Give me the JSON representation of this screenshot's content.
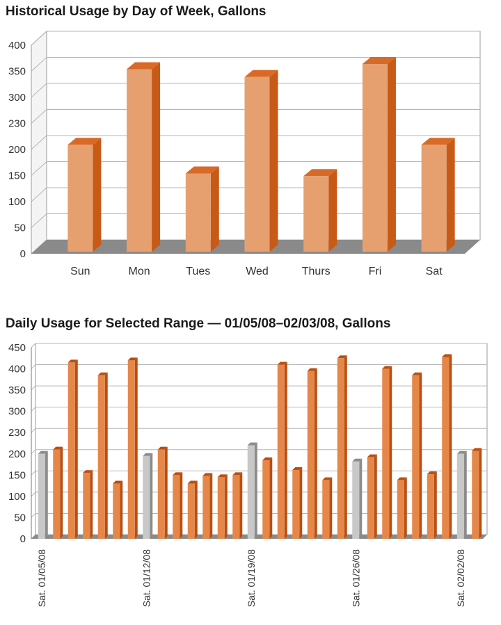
{
  "chart_data": [
    {
      "type": "bar",
      "title": "Historical Usage by Day of Week, Gallons",
      "categories": [
        "Sun",
        "Mon",
        "Tues",
        "Wed",
        "Thurs",
        "Fri",
        "Sat"
      ],
      "values": [
        205,
        350,
        150,
        335,
        145,
        360,
        205
      ],
      "yticks": [
        "0",
        "50",
        "100",
        "150",
        "200",
        "230",
        "300",
        "350",
        "400"
      ],
      "ylim": [
        0,
        400
      ],
      "grid": true,
      "bar_color": "#e6a070",
      "bar_side_color": "#c85a18",
      "floor_color": "#8a8a8a"
    },
    {
      "type": "bar",
      "title": "Daily Usage for Selected Range — 01/05/08–02/03/08, Gallons",
      "values": [
        200,
        210,
        415,
        155,
        385,
        130,
        420,
        195,
        210,
        150,
        130,
        148,
        145,
        150,
        220,
        185,
        410,
        162,
        395,
        138,
        425,
        182,
        192,
        400,
        138,
        385,
        152,
        428,
        200,
        207
      ],
      "highlight_indices": [
        0,
        7,
        14,
        21,
        28
      ],
      "x_tick_labels": [
        "Sat. 01/05/08",
        "Sat. 01/12/08",
        "Sat. 01/19/08",
        "Sat. 01/26/08",
        "Sat. 02/02/08"
      ],
      "yticks": [
        "0",
        "50",
        "100",
        "150",
        "200",
        "230",
        "300",
        "350",
        "400",
        "450"
      ],
      "ylim": [
        0,
        450
      ],
      "grid": true,
      "bar_color": "#e6874a",
      "highlight_color": "#c8c8c8"
    }
  ]
}
